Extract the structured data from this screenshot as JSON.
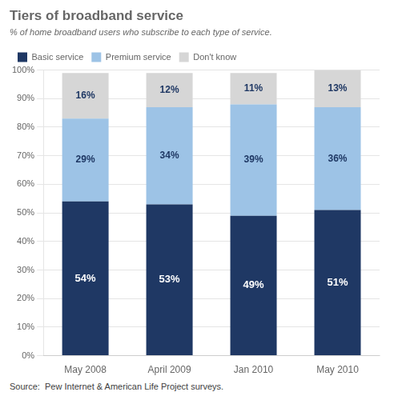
{
  "chart_data": {
    "type": "bar",
    "title": "Tiers of broadband service",
    "subtitle": "% of home broadband users who subscribe to each type of service.",
    "annotations": [
      "Source:  Pew Internet & American Life Project surveys."
    ],
    "categories": [
      "May 2008",
      "April 2009",
      "Jan 2010",
      "May 2010"
    ],
    "series": [
      {
        "name": "Basic service",
        "color": "#1f3864",
        "values": [
          54,
          53,
          49,
          51
        ],
        "value_labels": [
          "54%",
          "53%",
          "49%",
          "51%"
        ]
      },
      {
        "name": "Premium service",
        "color": "#9dc3e6",
        "values": [
          29,
          34,
          39,
          36
        ],
        "value_labels": [
          "29%",
          "34%",
          "39%",
          "36%"
        ]
      },
      {
        "name": "Don't know",
        "color": "#d6d6d6",
        "values": [
          16,
          12,
          11,
          13
        ],
        "value_labels": [
          "16%",
          "12%",
          "11%",
          "13%"
        ]
      }
    ],
    "stacked": true,
    "data_labels": true,
    "ylim": [
      0,
      100
    ],
    "yticks": [
      {
        "value": 0,
        "label": "0%"
      },
      {
        "value": 10,
        "label": "10%"
      },
      {
        "value": 20,
        "label": "20%"
      },
      {
        "value": 30,
        "label": "30%"
      },
      {
        "value": 40,
        "label": "40%"
      },
      {
        "value": 50,
        "label": "50%"
      },
      {
        "value": 60,
        "label": "60%"
      },
      {
        "value": 70,
        "label": "70%"
      },
      {
        "value": 80,
        "label": "80%"
      },
      {
        "value": 90,
        "label": "90%"
      },
      {
        "value": 100,
        "label": "100%"
      }
    ],
    "grid": true,
    "legend": "top"
  }
}
